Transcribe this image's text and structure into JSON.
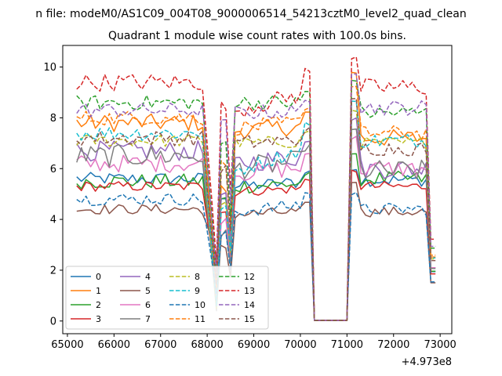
{
  "figure": {
    "suptitle": "n file: modeM0/AS1C09_004T08_9000006514_54213cztM0_level2_quad_clean",
    "title": "Quadrant 1 module wise count rates with 100.0s bins.",
    "offset_text": "+4.973e8"
  },
  "chart_data": {
    "type": "line",
    "title": "Quadrant 1 module wise count rates with 100.0s bins.",
    "suptitle": "n file: modeM0/AS1C09_004T08_9000006514_54213cztM0_level2_quad_clean",
    "xlabel": "",
    "ylabel": "",
    "x_offset": "+4.973e8",
    "xlim": [
      64900,
      73250
    ],
    "ylim": [
      -0.5,
      10.85
    ],
    "xticks": [
      65000,
      66000,
      67000,
      68000,
      69000,
      70000,
      71000,
      72000,
      73000
    ],
    "yticks": [
      0,
      2,
      4,
      6,
      8,
      10
    ],
    "grid": false,
    "legend": {
      "location": "lower-left",
      "ncol": 4
    },
    "series": [
      {
        "name": "0",
        "color": "#1f77b4",
        "dash": "solid",
        "level": 5.6,
        "noise": 0.25,
        "dip1": 2.1,
        "dip2": 4.9,
        "mid": 5.3,
        "post": 5.55,
        "spike": 6.0
      },
      {
        "name": "1",
        "color": "#ff7f0e",
        "dash": "solid",
        "level": 7.8,
        "noise": 0.35,
        "dip1": 1.2,
        "dip2": 5.2,
        "mid": 7.5,
        "post": 7.2,
        "spike": 9.8
      },
      {
        "name": "2",
        "color": "#2ca02c",
        "dash": "solid",
        "level": 5.5,
        "noise": 0.3,
        "dip1": 1.5,
        "dip2": 4.8,
        "mid": 5.3,
        "post": 5.6,
        "spike": 6.5
      },
      {
        "name": "3",
        "color": "#d62728",
        "dash": "solid",
        "level": 5.3,
        "noise": 0.2,
        "dip1": 1.6,
        "dip2": 4.3,
        "mid": 5.1,
        "post": 5.3,
        "spike": 5.9
      },
      {
        "name": "4",
        "color": "#9467bd",
        "dash": "solid",
        "level": 6.7,
        "noise": 0.4,
        "dip1": 0.8,
        "dip2": 5.0,
        "mid": 6.2,
        "post": 6.0,
        "spike": 8.0
      },
      {
        "name": "5",
        "color": "#8c564b",
        "dash": "solid",
        "level": 4.4,
        "noise": 0.2,
        "dip1": 2.5,
        "dip2": 2.9,
        "mid": 4.2,
        "post": 4.3,
        "spike": 5.5
      },
      {
        "name": "6",
        "color": "#e377c2",
        "dash": "solid",
        "level": 6.2,
        "noise": 0.35,
        "dip1": 1.0,
        "dip2": 4.0,
        "mid": 5.8,
        "post": 6.0,
        "spike": 7.2
      },
      {
        "name": "7",
        "color": "#7f7f7f",
        "dash": "solid",
        "level": 6.5,
        "noise": 0.45,
        "dip1": 0.4,
        "dip2": 3.5,
        "mid": 6.0,
        "post": 5.9,
        "spike": 7.5
      },
      {
        "name": "8",
        "color": "#bcbd22",
        "dash": "dashed",
        "level": 7.1,
        "noise": 0.25,
        "dip1": 0.5,
        "dip2": 4.6,
        "mid": 7.0,
        "post": 7.0,
        "spike": 8.3
      },
      {
        "name": "9",
        "color": "#17becf",
        "dash": "dashed",
        "level": 7.4,
        "noise": 0.3,
        "dip1": 0.6,
        "dip2": 4.5,
        "mid": 5.9,
        "post": 7.1,
        "spike": 8.6
      },
      {
        "name": "10",
        "color": "#1f77b4",
        "dash": "dashed",
        "level": 4.8,
        "noise": 0.25,
        "dip1": 1.1,
        "dip2": 3.4,
        "mid": 4.3,
        "post": 4.4,
        "spike": 5.0
      },
      {
        "name": "11",
        "color": "#ff7f0e",
        "dash": "dashed",
        "level": 8.0,
        "noise": 0.3,
        "dip1": 1.3,
        "dip2": 6.2,
        "mid": 7.6,
        "post": 7.4,
        "spike": 9.2
      },
      {
        "name": "12",
        "color": "#2ca02c",
        "dash": "dashed",
        "level": 8.6,
        "noise": 0.3,
        "dip1": 1.8,
        "dip2": 7.0,
        "mid": 8.6,
        "post": 8.2,
        "spike": 9.5
      },
      {
        "name": "13",
        "color": "#d62728",
        "dash": "dashed",
        "level": 9.4,
        "noise": 0.35,
        "dip1": 2.3,
        "dip2": 8.5,
        "mid": 8.3,
        "post": 9.2,
        "spike": 10.3
      },
      {
        "name": "14",
        "color": "#9467bd",
        "dash": "dashed",
        "level": 8.3,
        "noise": 0.3,
        "dip1": 1.9,
        "dip2": 7.8,
        "mid": 8.2,
        "post": 8.4,
        "spike": 9.8
      },
      {
        "name": "15",
        "color": "#8c564b",
        "dash": "dashed",
        "level": 7.2,
        "noise": 0.3,
        "dip1": 1.4,
        "dip2": 6.0,
        "mid": 7.0,
        "post": 6.8,
        "spike": 8.7
      }
    ]
  }
}
